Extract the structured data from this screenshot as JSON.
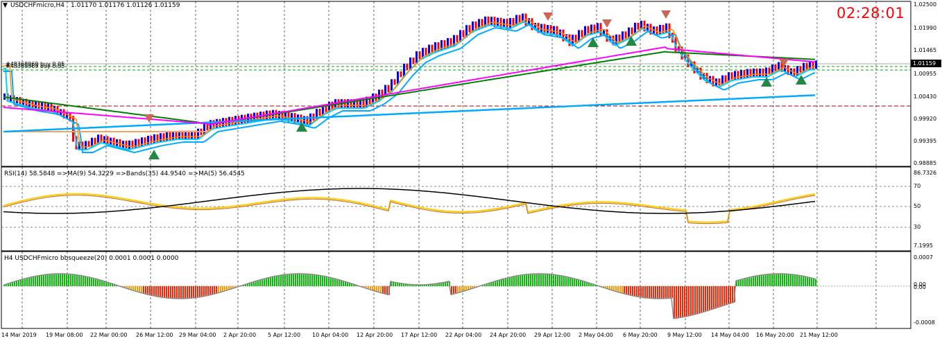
{
  "main_panel": {
    "symbol_info": "USDCHFmicro,H4",
    "ohlc": "1.01170 1.01176 1.01126 1.01159",
    "clock": "02:28:01",
    "order_label": "#48368969 buy 0.05",
    "current_price": "1.01159",
    "price_scale": [
      "1.02500",
      "1.01990",
      "1.01465",
      "1.00955",
      "1.00430",
      "0.99920",
      "0.99395",
      "0.98885"
    ]
  },
  "rsi_panel": {
    "label": "RSI(14) 58.5848  =>MA(9) 54.3229  =>Bands(35) 44.9540  =>MA(5) 56.4545",
    "scale": [
      "86.7326",
      "70",
      "50",
      "30",
      "7.1995"
    ]
  },
  "squeeze_panel": {
    "label": "H4 USDCHFmicro bbsqueeze(20) 0.0001 0.0001 0.0000",
    "scale": [
      "0.0007",
      "0.00",
      "0.00",
      "-0.0008"
    ]
  },
  "time_axis": [
    "14 Mar 2019",
    "19 Mar 08:00",
    "22 Mar 00:00",
    "26 Mar 12:00",
    "29 Mar 04:00",
    "2 Apr 20:00",
    "5 Apr 12:00",
    "10 Apr 04:00",
    "12 Apr 20:00",
    "17 Apr 12:00",
    "22 Apr 04:00",
    "24 Apr 20:00",
    "29 Apr 12:00",
    "2 May 04:00",
    "6 May 20:00",
    "9 May 12:00",
    "14 May 04:00",
    "16 May 20:00",
    "21 May 12:00"
  ],
  "colors": {
    "bull_bar": "#0000ff",
    "bear_bar": "#ff0000",
    "ma_magenta": "#ff00ff",
    "ma_lightblue": "#00aaff",
    "ma_green": "#008000",
    "ma_orange": "#ff8c00",
    "ma_cyan": "#00d0ff",
    "rsi_line": "#ffcc00",
    "rsi_ma": "#000000",
    "squeeze_up": "#00c000",
    "squeeze_down": "#ff2000",
    "clock": "#ff0000"
  }
}
